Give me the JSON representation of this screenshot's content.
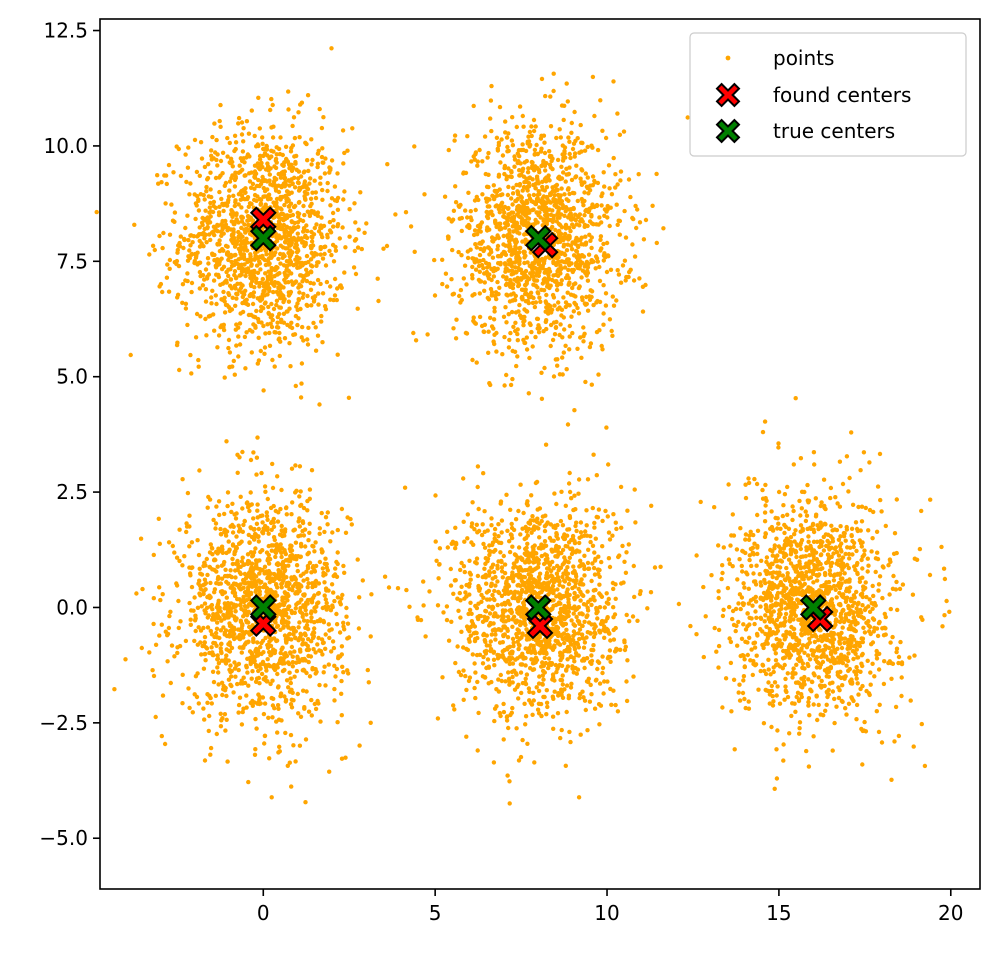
{
  "chart_data": {
    "type": "scatter",
    "title": "",
    "xlabel": "",
    "ylabel": "",
    "xlim": [
      -4.75,
      20.85
    ],
    "ylim": [
      -6.1,
      12.75
    ],
    "grid": false,
    "legend_position": "top-right",
    "xticks": [
      0,
      5,
      10,
      15,
      20
    ],
    "xtick_labels": [
      "0",
      "5",
      "10",
      "15",
      "20"
    ],
    "yticks": [
      -5.0,
      -2.5,
      0.0,
      2.5,
      5.0,
      7.5,
      10.0,
      12.5
    ],
    "ytick_labels": [
      "−5.0",
      "−2.5",
      "0.0",
      "2.5",
      "5.0",
      "7.5",
      "10.0",
      "12.5"
    ],
    "series": [
      {
        "name": "points",
        "marker": "dot",
        "color": "#ffa500",
        "cluster_centers": [
          [
            0,
            8
          ],
          [
            8,
            8
          ],
          [
            0,
            0
          ],
          [
            8,
            0
          ],
          [
            16,
            0
          ]
        ],
        "points_per_cluster": 1500,
        "std_dev": 1.2
      },
      {
        "name": "found centers",
        "marker": "X",
        "color": "#ff0000",
        "edgecolor": "#000000",
        "points": [
          [
            0.0,
            8.4
          ],
          [
            8.2,
            7.85
          ],
          [
            0.0,
            -0.35
          ],
          [
            8.05,
            -0.4
          ],
          [
            16.2,
            -0.25
          ]
        ]
      },
      {
        "name": "true centers",
        "marker": "X",
        "color": "#008000",
        "edgecolor": "#000000",
        "points": [
          [
            0,
            8
          ],
          [
            8,
            8
          ],
          [
            0,
            0
          ],
          [
            8,
            0
          ],
          [
            16,
            0
          ]
        ]
      }
    ]
  }
}
